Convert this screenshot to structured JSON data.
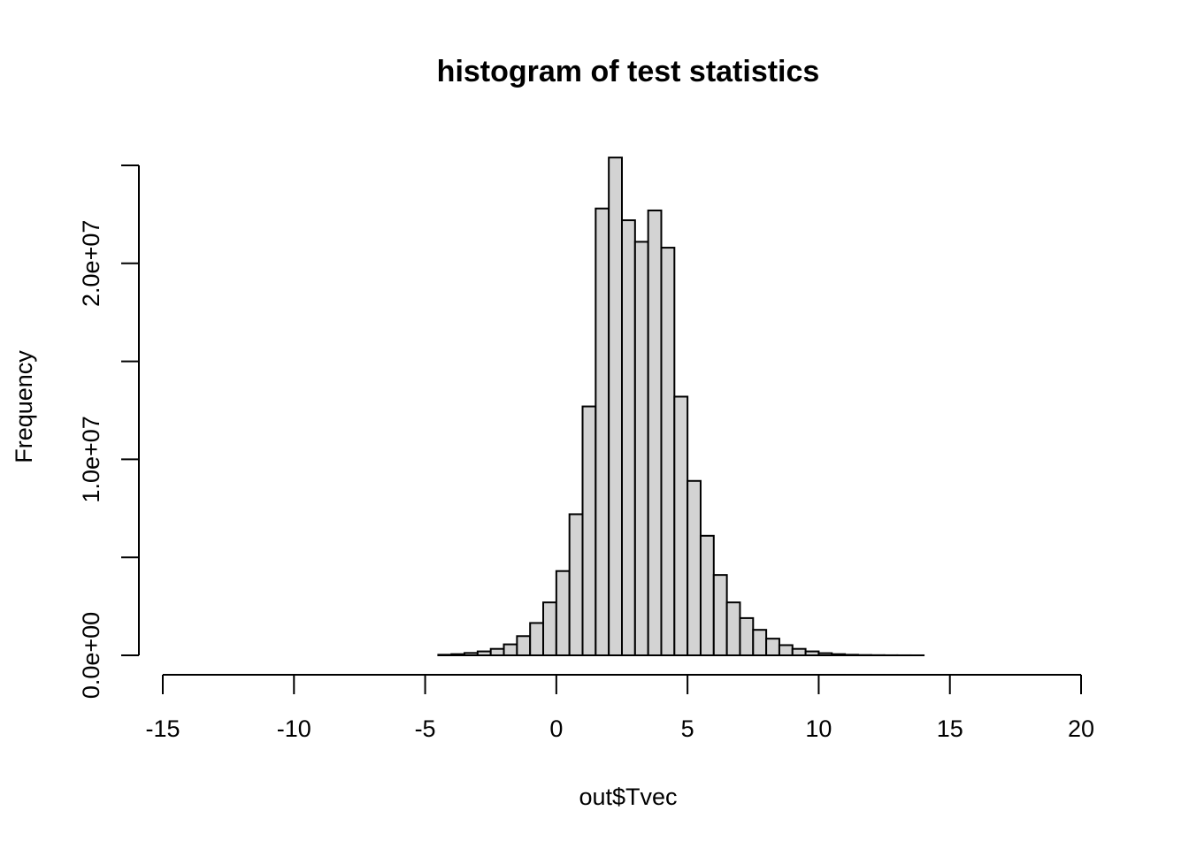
{
  "chart_data": {
    "type": "bar",
    "title": "histogram of test statistics",
    "xlabel": "out$Tvec",
    "ylabel": "Frequency",
    "xlim": [
      -15,
      20
    ],
    "ylim": [
      0,
      25000000
    ],
    "x_ticks": [
      -15,
      -10,
      -5,
      0,
      5,
      10,
      15,
      20
    ],
    "x_tick_labels": [
      "-15",
      "-10",
      "-5",
      "0",
      "5",
      "10",
      "15",
      "20"
    ],
    "y_ticks": [
      0,
      5000000,
      10000000,
      15000000,
      20000000,
      25000000
    ],
    "y_tick_labels": [
      "0.0e+00",
      "",
      "1.0e+07",
      "",
      "2.0e+07",
      ""
    ],
    "bin_width": 0.5,
    "bin_start": -14.5,
    "bin_end": 20,
    "values": [
      0,
      0,
      0,
      0,
      0,
      0,
      0,
      0,
      0,
      0,
      0,
      0,
      0,
      0,
      0,
      0,
      0,
      0,
      0,
      0,
      30000,
      60000,
      120000,
      200000,
      330000,
      560000,
      980000,
      1650000,
      2700000,
      4300000,
      7200000,
      12700000,
      22800000,
      25400000,
      22200000,
      21100000,
      22700000,
      20800000,
      13200000,
      8900000,
      6100000,
      4100000,
      2700000,
      1900000,
      1300000,
      850000,
      520000,
      330000,
      200000,
      110000,
      60000,
      30000,
      15000,
      8000,
      4000,
      2000,
      1000,
      0,
      0,
      0,
      0,
      0,
      0,
      0,
      0,
      0,
      0,
      0,
      0
    ],
    "bar_fill": "#d3d3d3",
    "bar_border": "#000000",
    "grid": false
  }
}
